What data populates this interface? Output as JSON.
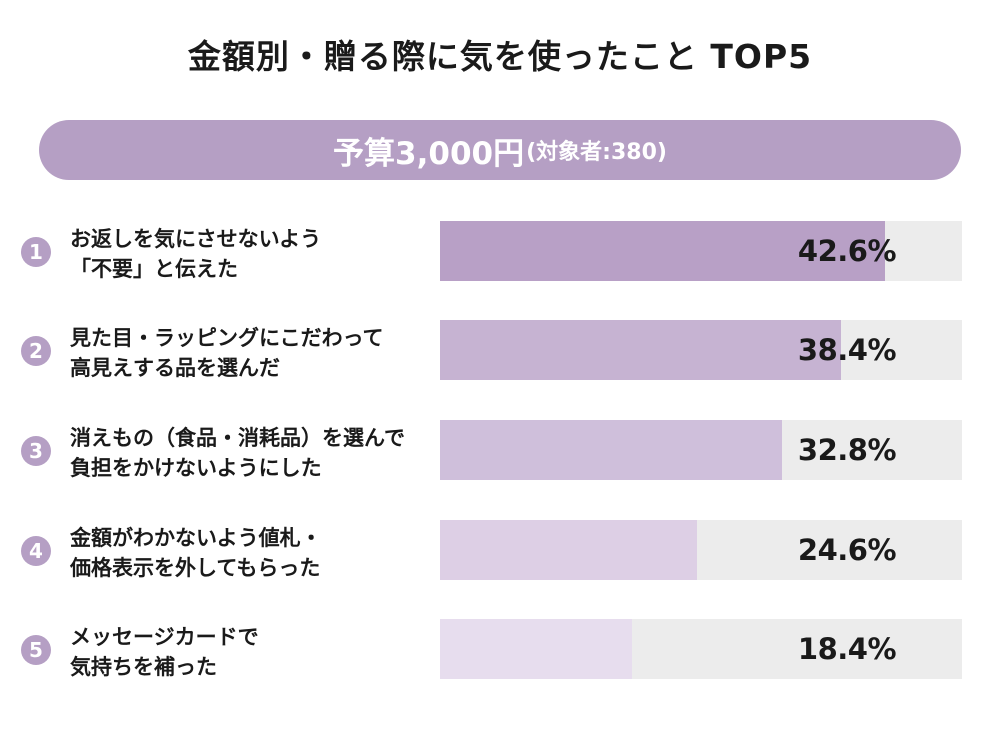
{
  "chart_data": {
    "type": "bar",
    "orientation": "horizontal",
    "title": "金額別・贈る際に気を使ったこと TOP5",
    "subtitle_main": "予算3,000円",
    "subtitle_sub": "(対象者:380)",
    "xlim": [
      0,
      50
    ],
    "unit": "%",
    "categories": [
      {
        "rank": "1",
        "line1": "お返しを気にさせないよう",
        "line2": "「不要」と伝えた"
      },
      {
        "rank": "2",
        "line1": "見た目・ラッピングにこだわって",
        "line2": "高見えする品を選んだ"
      },
      {
        "rank": "3",
        "line1": "消えもの（食品・消耗品）を選んで",
        "line2": "負担をかけないようにした"
      },
      {
        "rank": "4",
        "line1": "金額がわかないよう値札・",
        "line2": "価格表示を外してもらった"
      },
      {
        "rank": "5",
        "line1": "メッセージカードで",
        "line2": "気持ちを補った"
      }
    ],
    "values": [
      42.6,
      38.4,
      32.8,
      24.6,
      18.4
    ],
    "value_labels": [
      "42.6%",
      "38.4%",
      "32.8%",
      "24.6%",
      "18.4%"
    ],
    "bar_colors": [
      "#b8a0c6",
      "#c6b3d2",
      "#cfbfdb",
      "#ddcfe5",
      "#e7ddee"
    ],
    "track_color": "#ececec",
    "accent_color": "#b59fc4"
  }
}
